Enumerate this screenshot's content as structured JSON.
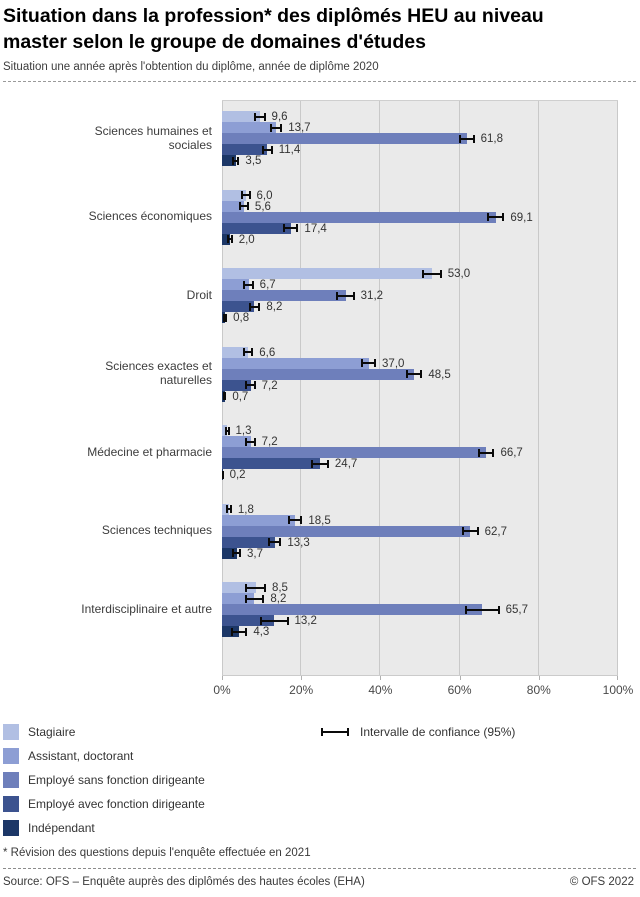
{
  "header": {
    "title": "Situation dans la profession* des diplômés HEU au niveau master selon le groupe de domaines d'études",
    "subtitle": "Situation une année après l'obtention du diplôme, année de diplôme 2020"
  },
  "chart_data": {
    "type": "bar",
    "orientation": "horizontal",
    "unit": "%",
    "xlim": [
      0,
      100
    ],
    "grid": true,
    "x_ticks": [
      {
        "value": 0,
        "label": "0%"
      },
      {
        "value": 20,
        "label": "20%"
      },
      {
        "value": 40,
        "label": "40%"
      },
      {
        "value": 60,
        "label": "60%"
      },
      {
        "value": 80,
        "label": "80%"
      },
      {
        "value": 100,
        "label": "100%"
      }
    ],
    "series_names": [
      "Stagiaire",
      "Assistant, doctorant",
      "Employé sans fonction dirigeante",
      "Employé avec fonction dirigeante",
      "Indépendant"
    ],
    "series_colors": [
      "#b1bfe3",
      "#8d9ed4",
      "#6e7fbb",
      "#3c538f",
      "#1c3767"
    ],
    "categories": [
      "Sciences humaines et sociales",
      "Sciences économiques",
      "Droit",
      "Sciences exactes et naturelles",
      "Médecine et pharmacie",
      "Sciences techniques",
      "Interdisciplinaire et autre"
    ],
    "groups": [
      {
        "category": "Sciences humaines et sociales",
        "values": [
          9.6,
          13.7,
          61.8,
          11.4,
          3.5
        ],
        "display": [
          "9,6",
          "13,7",
          "61,8",
          "11,4",
          "3,5"
        ],
        "ci": [
          1.4,
          1.5,
          2.0,
          1.4,
          0.9
        ]
      },
      {
        "category": "Sciences économiques",
        "values": [
          6.0,
          5.6,
          69.1,
          17.4,
          2.0
        ],
        "display": [
          "6,0",
          "5,6",
          "69,1",
          "17,4",
          "2,0"
        ],
        "ci": [
          1.2,
          1.2,
          2.2,
          1.9,
          0.7
        ]
      },
      {
        "category": "Droit",
        "values": [
          53.0,
          6.7,
          31.2,
          8.2,
          0.8
        ],
        "display": [
          "53,0",
          "6,7",
          "31,2",
          "8,2",
          "0,8"
        ],
        "ci": [
          2.5,
          1.3,
          2.3,
          1.5,
          0.5
        ]
      },
      {
        "category": "Sciences exactes et naturelles",
        "values": [
          6.6,
          37.0,
          48.5,
          7.2,
          0.7
        ],
        "display": [
          "6,6",
          "37,0",
          "48,5",
          "7,2",
          "0,7"
        ],
        "ci": [
          1.3,
          1.9,
          2.1,
          1.3,
          0.4
        ]
      },
      {
        "category": "Médecine et pharmacie",
        "values": [
          1.3,
          7.2,
          66.7,
          24.7,
          0.2
        ],
        "display": [
          "1,3",
          "7,2",
          "66,7",
          "24,7",
          "0,2"
        ],
        "ci": [
          0.6,
          1.3,
          2.1,
          2.3,
          0.2
        ]
      },
      {
        "category": "Sciences techniques",
        "values": [
          1.8,
          18.5,
          62.7,
          13.3,
          3.7
        ],
        "display": [
          "1,8",
          "18,5",
          "62,7",
          "13,3",
          "3,7"
        ],
        "ci": [
          0.7,
          1.8,
          2.1,
          1.7,
          1.1
        ]
      },
      {
        "category": "Interdisciplinaire et autre",
        "values": [
          8.5,
          8.2,
          65.7,
          13.2,
          4.3
        ],
        "display": [
          "8,5",
          "8,2",
          "65,7",
          "13,2",
          "4,3"
        ],
        "ci": [
          2.6,
          2.5,
          4.4,
          3.6,
          2.1
        ]
      }
    ],
    "legend_position": "bottom-left",
    "plot_background": "#eaeaea",
    "gridline_color": "#c9c9c9"
  },
  "legend": {
    "ci_label": "Intervalle de confiance (95%)"
  },
  "footnote": "* Révision des questions depuis l'enquête effectuée en 2021",
  "footer": {
    "source": "Source: OFS – Enquête auprès des diplômés des hautes écoles (EHA)",
    "copyright": "© OFS 2022"
  }
}
